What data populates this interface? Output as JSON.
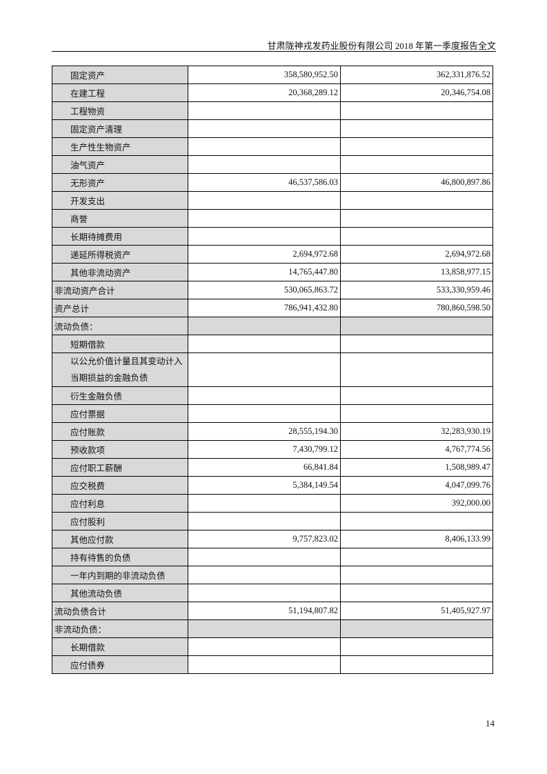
{
  "header": {
    "title": "甘肃陇神戎发药业股份有限公司 2018 年第一季度报告全文"
  },
  "table": {
    "rows": [
      {
        "label": "固定资产",
        "indent": true,
        "col1": "358,580,952.50",
        "col2": "362,331,876.52"
      },
      {
        "label": "在建工程",
        "indent": true,
        "col1": "20,368,289.12",
        "col2": "20,346,754.08"
      },
      {
        "label": "工程物资",
        "indent": true,
        "col1": "",
        "col2": ""
      },
      {
        "label": "固定资产清理",
        "indent": true,
        "col1": "",
        "col2": ""
      },
      {
        "label": "生产性生物资产",
        "indent": true,
        "col1": "",
        "col2": ""
      },
      {
        "label": "油气资产",
        "indent": true,
        "col1": "",
        "col2": ""
      },
      {
        "label": "无形资产",
        "indent": true,
        "col1": "46,537,586.03",
        "col2": "46,800,897.86"
      },
      {
        "label": "开发支出",
        "indent": true,
        "col1": "",
        "col2": ""
      },
      {
        "label": "商誉",
        "indent": true,
        "col1": "",
        "col2": ""
      },
      {
        "label": "长期待摊费用",
        "indent": true,
        "col1": "",
        "col2": ""
      },
      {
        "label": "递延所得税资产",
        "indent": true,
        "col1": "2,694,972.68",
        "col2": "2,694,972.68"
      },
      {
        "label": "其他非流动资产",
        "indent": true,
        "col1": "14,765,447.80",
        "col2": "13,858,977.15"
      },
      {
        "label": "非流动资产合计",
        "indent": false,
        "col1": "530,065,863.72",
        "col2": "533,330,959.46"
      },
      {
        "label": "资产总计",
        "indent": false,
        "col1": "786,941,432.80",
        "col2": "780,860,598.50"
      },
      {
        "label": "流动负债：",
        "indent": false,
        "section": true,
        "col1": "",
        "col2": ""
      },
      {
        "label": "短期借款",
        "indent": true,
        "col1": "",
        "col2": ""
      },
      {
        "label": "以公允价值计量且其变动计入当期损益的金融负债",
        "indent": true,
        "double": true,
        "col1": "",
        "col2": ""
      },
      {
        "label": "衍生金融负债",
        "indent": true,
        "col1": "",
        "col2": ""
      },
      {
        "label": "应付票据",
        "indent": true,
        "col1": "",
        "col2": ""
      },
      {
        "label": "应付账款",
        "indent": true,
        "col1": "28,555,194.30",
        "col2": "32,283,930.19"
      },
      {
        "label": "预收款项",
        "indent": true,
        "col1": "7,430,799.12",
        "col2": "4,767,774.56"
      },
      {
        "label": "应付职工薪酬",
        "indent": true,
        "col1": "66,841.84",
        "col2": "1,508,989.47"
      },
      {
        "label": "应交税费",
        "indent": true,
        "col1": "5,384,149.54",
        "col2": "4,047,099.76"
      },
      {
        "label": "应付利息",
        "indent": true,
        "col1": "",
        "col2": "392,000.00"
      },
      {
        "label": "应付股利",
        "indent": true,
        "col1": "",
        "col2": ""
      },
      {
        "label": "其他应付款",
        "indent": true,
        "col1": "9,757,823.02",
        "col2": "8,406,133.99"
      },
      {
        "label": "持有待售的负债",
        "indent": true,
        "col1": "",
        "col2": ""
      },
      {
        "label": "一年内到期的非流动负债",
        "indent": true,
        "col1": "",
        "col2": ""
      },
      {
        "label": "其他流动负债",
        "indent": true,
        "col1": "",
        "col2": ""
      },
      {
        "label": "流动负债合计",
        "indent": false,
        "col1": "51,194,807.82",
        "col2": "51,405,927.97"
      },
      {
        "label": "非流动负债：",
        "indent": false,
        "section": true,
        "col1": "",
        "col2": ""
      },
      {
        "label": "长期借款",
        "indent": true,
        "col1": "",
        "col2": ""
      },
      {
        "label": "应付债券",
        "indent": true,
        "col1": "",
        "col2": ""
      }
    ]
  },
  "footer": {
    "page_number": "14"
  }
}
